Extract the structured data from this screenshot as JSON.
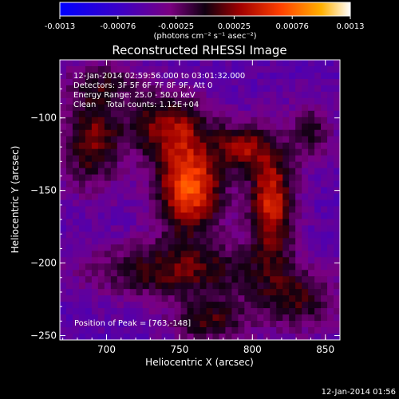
{
  "chart_data": {
    "type": "heatmap",
    "title": "Reconstructed RHESSI Image",
    "xlabel": "Heliocentric X (arcsec)",
    "ylabel": "Heliocentric Y (arcsec)",
    "xlim": [
      668,
      860
    ],
    "ylim": [
      -253,
      -60
    ],
    "x_ticks": [
      700,
      750,
      800,
      850
    ],
    "y_ticks": [
      -100,
      -150,
      -200,
      -250
    ],
    "colorbar": {
      "min": -0.0013,
      "max": 0.0013,
      "ticks": [
        "-0.0013",
        "-0.00076",
        "-0.00025",
        "0.00025",
        "0.00076",
        "0.0013"
      ],
      "unit_label": "(photons cm⁻² s⁻¹ asec⁻²)"
    },
    "annotations": [
      "12-Jan-2014 02:59:56.000 to 03:01:32.000",
      "Detectors: 3F 5F 6F 7F 8F 9F, Att 0",
      "Energy Range: 25.0 - 50.0 keV",
      "Clean    Total counts: 1.12E+04"
    ],
    "peak_label": "Position of Peak = [763,-148]",
    "peak": [
      763,
      -148
    ],
    "sources": [
      {
        "x": 757,
        "y": -148,
        "sx": 16,
        "sy": 22,
        "amp": 0.00125
      },
      {
        "x": 813,
        "y": -158,
        "sx": 11,
        "sy": 28,
        "amp": 0.00105
      },
      {
        "x": 793,
        "y": -120,
        "sx": 12,
        "sy": 11,
        "amp": 0.00075
      },
      {
        "x": 742,
        "y": -105,
        "sx": 20,
        "sy": 16,
        "amp": 0.0008
      },
      {
        "x": 690,
        "y": -115,
        "sx": 14,
        "sy": 24,
        "amp": 0.00075
      },
      {
        "x": 748,
        "y": -205,
        "sx": 42,
        "sy": 14,
        "amp": 0.0007
      },
      {
        "x": 830,
        "y": -225,
        "sx": 20,
        "sy": 15,
        "amp": 0.0006
      },
      {
        "x": 770,
        "y": -240,
        "sx": 18,
        "sy": 10,
        "amp": 0.00065
      },
      {
        "x": 700,
        "y": -75,
        "sx": 18,
        "sy": 10,
        "amp": 0.0004
      },
      {
        "x": 840,
        "y": -110,
        "sx": 10,
        "sy": 15,
        "amp": 0.0005
      }
    ],
    "grid": false
  },
  "footer": {
    "timestamp": "12-Jan-2014 01:56"
  }
}
